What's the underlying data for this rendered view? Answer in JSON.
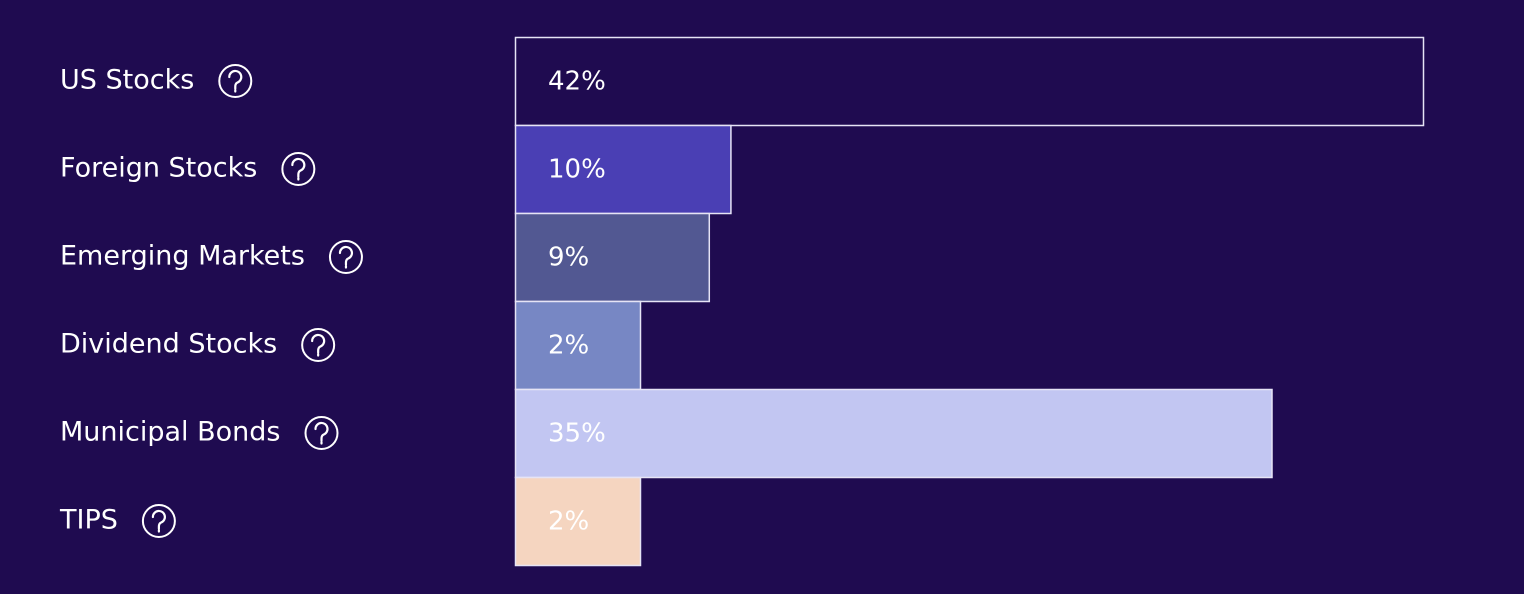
{
  "chart_data": {
    "type": "bar",
    "orientation": "horizontal",
    "categories": [
      "US Stocks",
      "Foreign Stocks",
      "Emerging Markets",
      "Dividend Stocks",
      "Municipal Bonds",
      "TIPS"
    ],
    "values": [
      42,
      10,
      9,
      2,
      35,
      2
    ],
    "value_labels": [
      "42%",
      "10%",
      "9%",
      "2%",
      "35%",
      "2%"
    ],
    "colors": [
      "#1f0b50",
      "#4a3fb4",
      "#525892",
      "#7787c4",
      "#c2c6f2",
      "#f5d5c0"
    ]
  }
}
